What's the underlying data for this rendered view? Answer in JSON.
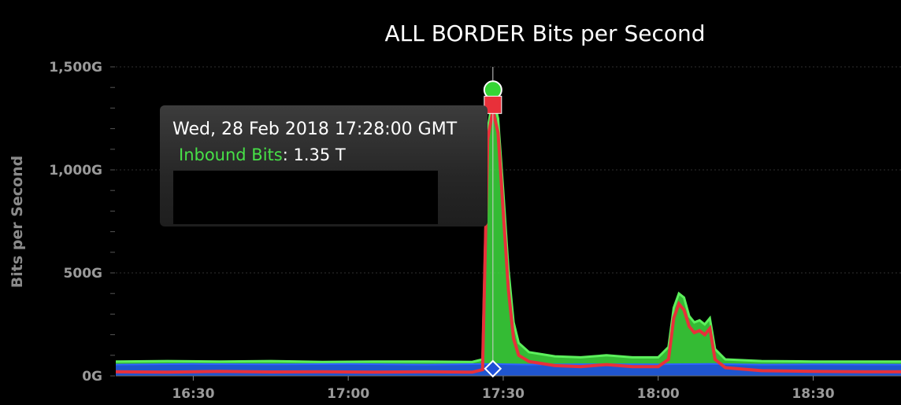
{
  "chart_data": {
    "type": "area",
    "title": "ALL BORDER Bits per Second",
    "ylabel": "Bits per Second",
    "xlabel": "",
    "ylim": [
      0,
      1500
    ],
    "xlim": [
      "16:15",
      "18:47"
    ],
    "y_ticks": [
      {
        "value": 0,
        "label": "0G"
      },
      {
        "value": 500,
        "label": "500G"
      },
      {
        "value": 1000,
        "label": "1,000G"
      },
      {
        "value": 1500,
        "label": "1,500G"
      }
    ],
    "y_minor_step": 100,
    "x_ticks": [
      "16:30",
      "17:00",
      "17:30",
      "18:00",
      "18:30"
    ],
    "grid": true,
    "series": [
      {
        "name": "Inbound Bits",
        "color": "#3ddc3d",
        "points": [
          [
            "16:15",
            70
          ],
          [
            "16:25",
            72
          ],
          [
            "16:35",
            70
          ],
          [
            "16:45",
            72
          ],
          [
            "16:55",
            68
          ],
          [
            "17:05",
            70
          ],
          [
            "17:15",
            70
          ],
          [
            "17:24",
            68
          ],
          [
            "17:26",
            80
          ],
          [
            "17:27",
            1200
          ],
          [
            "17:28",
            1350
          ],
          [
            "17:29",
            1250
          ],
          [
            "17:30",
            900
          ],
          [
            "17:31",
            520
          ],
          [
            "17:32",
            260
          ],
          [
            "17:33",
            160
          ],
          [
            "17:35",
            115
          ],
          [
            "17:40",
            95
          ],
          [
            "17:45",
            90
          ],
          [
            "17:50",
            100
          ],
          [
            "17:55",
            90
          ],
          [
            "18:00",
            90
          ],
          [
            "18:02",
            140
          ],
          [
            "18:03",
            330
          ],
          [
            "18:04",
            400
          ],
          [
            "18:05",
            380
          ],
          [
            "18:06",
            290
          ],
          [
            "18:07",
            260
          ],
          [
            "18:08",
            270
          ],
          [
            "18:09",
            250
          ],
          [
            "18:10",
            280
          ],
          [
            "18:11",
            130
          ],
          [
            "18:13",
            80
          ],
          [
            "18:20",
            72
          ],
          [
            "18:30",
            70
          ],
          [
            "18:40",
            70
          ],
          [
            "18:47",
            70
          ]
        ]
      },
      {
        "color": "#1f4fd8",
        "points": [
          [
            "16:15",
            55
          ],
          [
            "16:30",
            58
          ],
          [
            "16:45",
            56
          ],
          [
            "17:00",
            58
          ],
          [
            "17:15",
            55
          ],
          [
            "17:28",
            58
          ],
          [
            "17:35",
            55
          ],
          [
            "17:45",
            57
          ],
          [
            "18:00",
            56
          ],
          [
            "18:10",
            58
          ],
          [
            "18:20",
            55
          ],
          [
            "18:30",
            56
          ],
          [
            "18:47",
            55
          ]
        ]
      },
      {
        "color": "#e8303a",
        "points": [
          [
            "16:15",
            20
          ],
          [
            "16:25",
            18
          ],
          [
            "16:35",
            22
          ],
          [
            "16:45",
            19
          ],
          [
            "16:55",
            20
          ],
          [
            "17:05",
            18
          ],
          [
            "17:15",
            20
          ],
          [
            "17:24",
            18
          ],
          [
            "17:26",
            30
          ],
          [
            "17:27",
            1150
          ],
          [
            "17:28",
            1290
          ],
          [
            "17:29",
            1180
          ],
          [
            "17:30",
            800
          ],
          [
            "17:31",
            420
          ],
          [
            "17:32",
            180
          ],
          [
            "17:33",
            100
          ],
          [
            "17:35",
            70
          ],
          [
            "17:40",
            50
          ],
          [
            "17:45",
            45
          ],
          [
            "17:50",
            55
          ],
          [
            "17:55",
            45
          ],
          [
            "18:00",
            45
          ],
          [
            "18:02",
            80
          ],
          [
            "18:03",
            280
          ],
          [
            "18:04",
            350
          ],
          [
            "18:05",
            320
          ],
          [
            "18:06",
            240
          ],
          [
            "18:07",
            210
          ],
          [
            "18:08",
            220
          ],
          [
            "18:09",
            200
          ],
          [
            "18:10",
            230
          ],
          [
            "18:11",
            80
          ],
          [
            "18:13",
            40
          ],
          [
            "18:20",
            25
          ],
          [
            "18:30",
            22
          ],
          [
            "18:40",
            20
          ],
          [
            "18:47",
            20
          ]
        ]
      }
    ],
    "highlight": {
      "time": "17:28",
      "value": 1350
    }
  },
  "tooltip": {
    "date": "Wed, 28 Feb 2018 17:28:00 GMT",
    "series": "Inbound Bits",
    "separator": ":",
    "value": "1.35 T"
  }
}
